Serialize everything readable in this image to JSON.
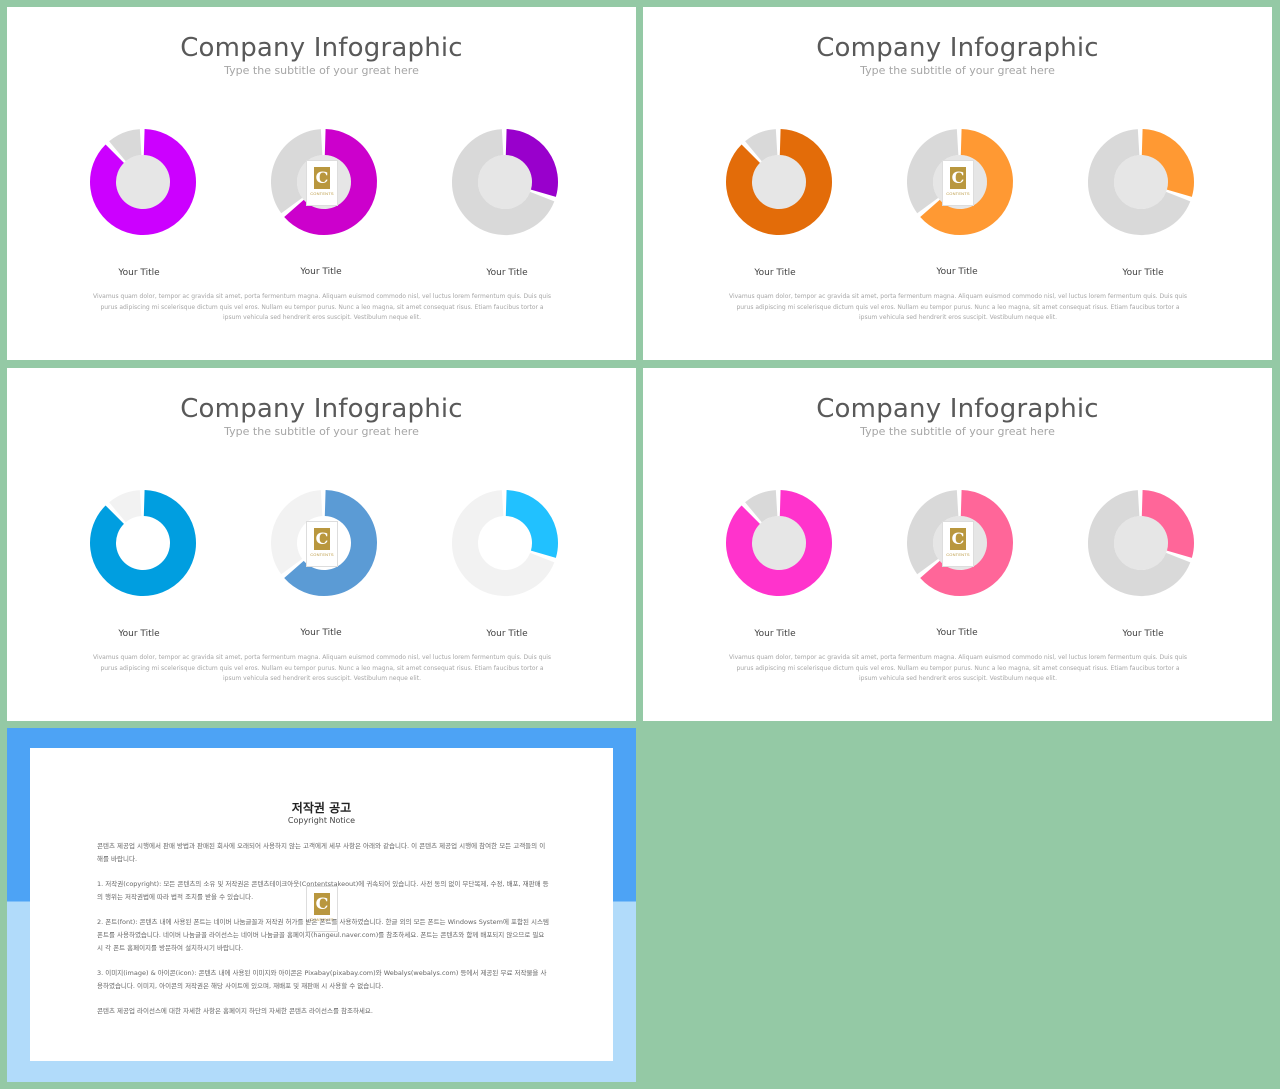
{
  "slides": [
    {
      "title": "Company Infographic",
      "subtitle": "Type the subtitle of your great here",
      "item_titles": [
        "Your Title",
        "Your Title",
        "Your Title"
      ],
      "body": "Vivamus quam dolor, tempor ac gravida sit amet, porta fermentum magna. Aliquam euismod commodo nisl, vel luctus lorem fermentum quis. Duis quis purus adipiscing mi scelerisque dictum quis vel eros. Nullam eu tempor purus. Nunc a leo magna, sit amet consequat risus. Etiam faucibus tortor a ipsum vehicula sed hendrerit eros suscipit. Vestibulum neque elit.",
      "colors": {
        "d1": "#cc00ff",
        "d2": "#cc00cc",
        "d3": "#9900cc",
        "track": "#d9d9d9",
        "inner": "#e6e6e6"
      },
      "percents": [
        0.88,
        0.64,
        0.3
      ]
    },
    {
      "title": "Company Infographic",
      "subtitle": "Type the subtitle of your great here",
      "item_titles": [
        "Your Title",
        "Your Title",
        "Your Title"
      ],
      "body": "Vivamus quam dolor, tempor ac gravida sit amet, porta fermentum magna. Aliquam euismod commodo nisl, vel luctus lorem fermentum quis. Duis quis purus adipiscing mi scelerisque dictum quis vel eros. Nullam eu tempor purus. Nunc a leo magna, sit amet consequat risus. Etiam faucibus tortor a ipsum vehicula sed hendrerit eros suscipit. Vestibulum neque elit.",
      "colors": {
        "d1": "#e36c09",
        "d2": "#ff9933",
        "d3": "#ff9933",
        "track": "#d9d9d9",
        "inner": "#e6e6e6"
      },
      "percents": [
        0.88,
        0.64,
        0.3
      ]
    },
    {
      "title": "Company Infographic",
      "subtitle": "Type the subtitle of your great here",
      "item_titles": [
        "Your Title",
        "Your Title",
        "Your Title"
      ],
      "body": "Vivamus quam dolor, tempor ac gravida sit amet, porta fermentum magna. Aliquam euismod commodo nisl, vel luctus lorem fermentum quis. Duis quis purus adipiscing mi scelerisque dictum quis vel eros. Nullam eu tempor purus. Nunc a leo magna, sit amet consequat risus. Etiam faucibus tortor a ipsum vehicula sed hendrerit eros suscipit. Vestibulum neque elit.",
      "colors": {
        "d1": "#009ee0",
        "d2": "#5b9bd5",
        "d3": "#21c1ff",
        "track": "#f2f2f2",
        "inner": "#ffffff"
      },
      "percents": [
        0.88,
        0.64,
        0.3
      ]
    },
    {
      "title": "Company Infographic",
      "subtitle": "Type the subtitle of your great here",
      "item_titles": [
        "Your Title",
        "Your Title",
        "Your Title"
      ],
      "body": "Vivamus quam dolor, tempor ac gravida sit amet, porta fermentum magna. Aliquam euismod commodo nisl, vel luctus lorem fermentum quis. Duis quis purus adipiscing mi scelerisque dictum quis vel eros. Nullam eu tempor purus. Nunc a leo magna, sit amet consequat risus. Etiam faucibus tortor a ipsum vehicula sed hendrerit eros suscipit. Vestibulum neque elit.",
      "colors": {
        "d1": "#ff33cc",
        "d2": "#ff6699",
        "d3": "#ff6699",
        "track": "#d9d9d9",
        "inner": "#e6e6e6"
      },
      "percents": [
        0.88,
        0.64,
        0.3
      ]
    }
  ],
  "watermark": {
    "letter": "C",
    "text": "CONTENTS"
  },
  "notice": {
    "title": "저작권 공고",
    "subtitle": "Copyright Notice",
    "paragraphs": [
      "콘텐츠 제공업 시행에서 판매 방법과 판매된 회사에 오래되어 사용하지 않는 고객에게 세부 사항은 아래와 같습니다. 이 콘텐츠 제공업 시행에 참여한 모든 고객들의 이해를 바랍니다.",
      "1. 저작권(copyright): 모든 콘텐츠의 소유 및 저작권은 콘텐츠테이크아웃(Contentstakeout)에 귀속되어 있습니다. 사전 동의 없이 무단복제, 수정, 배포, 재판매 등의 행위는 저작권법에 따라 법적 조치를 받을 수 있습니다.",
      "2. 폰트(font): 콘텐츠 내에 사용된 폰트는 네이버 나눔글꼴과 저작권 허가를 받은 폰트를 사용하였습니다. 한글 외의 모든 폰트는 Windows System에 포함된 시스템 폰트를 사용하였습니다. 네이버 나눔글꼴 라이선스는 네이버 나눔글꼴 홈페이지(hangeul.naver.com)를 참조하세요. 폰트는 콘텐츠와 함께 배포되지 않으므로 필요 시 각 폰트 홈페이지를 방문하여 설치하시기 바랍니다.",
      "3. 이미지(image) & 아이콘(icon): 콘텐츠 내에 사용된 이미지와 아이콘은 Pixabay(pixabay.com)와 Webalys(webalys.com) 등에서 제공된 무료 저작물을 사용하였습니다. 이미지, 아이콘의 저작권은 해당 사이트에 있으며, 재배포 및 재판매 시 사용할 수 없습니다.",
      "콘텐츠 제공업 라이선스에 대한 자세한 사항은 홈페이지 하단의 자세한 콘텐츠 라이선스를 참조하세요."
    ]
  }
}
